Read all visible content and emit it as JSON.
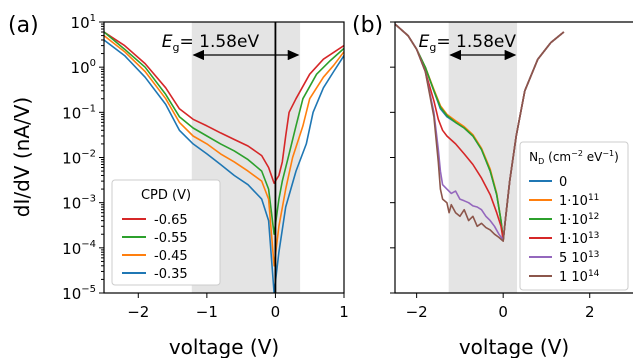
{
  "figure": {
    "ylabel": "dI/dV (nA/V)",
    "xlabel": "voltage (V)"
  },
  "colors": {
    "red": "#d62728",
    "green": "#2ca02c",
    "orange": "#ff7f0e",
    "blue": "#1f77b4",
    "purple": "#9467bd",
    "brown": "#8c564b",
    "band": "#e4e4e4"
  },
  "chart_data": [
    {
      "type": "line",
      "panel_label": "(a)",
      "xlabel": "voltage (V)",
      "ylabel": "dI/dV (nA/V)",
      "xlim": [
        -2.5,
        1.0
      ],
      "ylim": [
        1e-05,
        10
      ],
      "yscale": "log",
      "x_ticks": [
        -2,
        -1,
        0,
        1
      ],
      "x_tick_labels": [
        "−2",
        "−1",
        "0",
        "1"
      ],
      "y_ticks": [
        1e-05,
        0.0001,
        0.001,
        0.01,
        0.1,
        1,
        10
      ],
      "y_tick_labels": [
        {
          "base": "10",
          "exp": "−5"
        },
        {
          "base": "10",
          "exp": "−4"
        },
        {
          "base": "10",
          "exp": "−3"
        },
        {
          "base": "10",
          "exp": "−2"
        },
        {
          "base": "10",
          "exp": "−1"
        },
        {
          "base": "10",
          "exp": "0"
        },
        {
          "base": "10",
          "exp": "1"
        }
      ],
      "band_x": [
        -1.22,
        0.36
      ],
      "vline_x": 0,
      "annotation": {
        "sym": "E",
        "sub": "g",
        "text": "= 1.58eV",
        "from_x": -1.22,
        "to_x": 0.36
      },
      "legend": {
        "title": "CPD (V)",
        "position": "lower-left"
      },
      "series": [
        {
          "name": "-0.65",
          "color": "#d62728",
          "x": [
            -2.5,
            -2.2,
            -1.9,
            -1.6,
            -1.4,
            -1.2,
            -1.0,
            -0.8,
            -0.6,
            -0.4,
            -0.2,
            -0.1,
            -0.02,
            0.05,
            0.1,
            0.15,
            0.2,
            0.3,
            0.5,
            0.7,
            1.0
          ],
          "y": [
            6,
            3,
            1.2,
            0.35,
            0.12,
            0.07,
            0.05,
            0.035,
            0.025,
            0.018,
            0.011,
            0.006,
            0.0027,
            0.004,
            0.008,
            0.03,
            0.1,
            0.2,
            0.7,
            1.5,
            3
          ]
        },
        {
          "name": "-0.55",
          "color": "#2ca02c",
          "x": [
            -2.5,
            -2.2,
            -1.9,
            -1.6,
            -1.4,
            -1.2,
            -1.0,
            -0.8,
            -0.6,
            -0.4,
            -0.2,
            -0.1,
            -0.02,
            0.05,
            0.1,
            0.2,
            0.3,
            0.4,
            0.6,
            0.8,
            1.0
          ],
          "y": [
            6,
            2.5,
            1.0,
            0.25,
            0.08,
            0.045,
            0.03,
            0.02,
            0.014,
            0.009,
            0.005,
            0.002,
            0.0002,
            0.0012,
            0.003,
            0.012,
            0.05,
            0.2,
            0.7,
            1.4,
            2.6
          ]
        },
        {
          "name": "-0.45",
          "color": "#ff7f0e",
          "x": [
            -2.5,
            -2.2,
            -1.9,
            -1.6,
            -1.4,
            -1.2,
            -1.0,
            -0.8,
            -0.6,
            -0.4,
            -0.2,
            -0.1,
            -0.02,
            0.05,
            0.15,
            0.25,
            0.4,
            0.5,
            0.7,
            0.85,
            1.0
          ],
          "y": [
            5,
            2.2,
            0.8,
            0.2,
            0.06,
            0.03,
            0.02,
            0.012,
            0.008,
            0.005,
            0.003,
            0.0012,
            4e-05,
            0.0003,
            0.002,
            0.01,
            0.05,
            0.2,
            0.6,
            1.1,
            2.2
          ]
        },
        {
          "name": "-0.35",
          "color": "#1f77b4",
          "x": [
            -2.5,
            -2.2,
            -1.9,
            -1.6,
            -1.4,
            -1.2,
            -1.0,
            -0.8,
            -0.6,
            -0.4,
            -0.2,
            -0.1,
            -0.02,
            0.05,
            0.15,
            0.3,
            0.45,
            0.55,
            0.7,
            0.85,
            1.0
          ],
          "y": [
            4,
            1.8,
            0.6,
            0.15,
            0.04,
            0.02,
            0.012,
            0.007,
            0.004,
            0.0025,
            0.0012,
            0.0004,
            1e-05,
            8e-05,
            0.0008,
            0.005,
            0.02,
            0.1,
            0.35,
            0.8,
            1.8
          ]
        }
      ]
    },
    {
      "type": "line",
      "panel_label": "(b)",
      "xlabel": "voltage (V)",
      "xlim": [
        -2.5,
        3.0
      ],
      "ylim": [
        1e-05,
        10
      ],
      "yscale": "log",
      "x_ticks": [
        -2,
        0,
        2
      ],
      "x_tick_labels": [
        "−2",
        "0",
        "2"
      ],
      "band_x": [
        -1.26,
        0.32
      ],
      "annotation": {
        "sym": "E",
        "sub": "g",
        "text": "= 1.58eV",
        "from_x": -1.26,
        "to_x": 0.32
      },
      "legend": {
        "title_main": "N",
        "title_sub": "D",
        "title_unit": " (cm",
        "title_exp1": "−2",
        "title_mid": " eV",
        "title_exp2": "−1",
        "title_end": ")",
        "position": "lower-right"
      },
      "series": [
        {
          "color": "#1f77b4",
          "label": {
            "main": "0",
            "sup": ""
          },
          "x": [
            -2.5,
            -2.2,
            -2.0,
            -1.8,
            -1.6,
            -1.45,
            -1.3,
            -1.1,
            -0.9,
            -0.7,
            -0.5,
            -0.3,
            -0.15,
            -0.05,
            0.0,
            0.05,
            0.15,
            0.3,
            0.5,
            0.8,
            1.1,
            1.4
          ],
          "y": [
            9,
            5,
            2.5,
            1.0,
            0.3,
            0.12,
            0.08,
            0.06,
            0.045,
            0.03,
            0.015,
            0.005,
            0.0015,
            0.0004,
            0.00015,
            0.0004,
            0.003,
            0.03,
            0.3,
            1.5,
            3.5,
            6
          ]
        },
        {
          "color": "#ff7f0e",
          "label": {
            "main": "1·10",
            "sup": "11"
          },
          "x": [
            -2.5,
            -2.2,
            -2.0,
            -1.8,
            -1.6,
            -1.45,
            -1.3,
            -1.1,
            -0.9,
            -0.7,
            -0.5,
            -0.3,
            -0.15,
            -0.05,
            0.0,
            0.05,
            0.15,
            0.3,
            0.5,
            0.8,
            1.1,
            1.4
          ],
          "y": [
            9,
            5,
            2.5,
            1.0,
            0.32,
            0.14,
            0.09,
            0.065,
            0.048,
            0.032,
            0.016,
            0.0055,
            0.0016,
            0.0004,
            0.00015,
            0.0004,
            0.003,
            0.03,
            0.3,
            1.5,
            3.5,
            6
          ]
        },
        {
          "color": "#2ca02c",
          "label": {
            "main": "1·10",
            "sup": "12"
          },
          "x": [
            -2.5,
            -2.2,
            -2.0,
            -1.8,
            -1.6,
            -1.45,
            -1.3,
            -1.1,
            -0.9,
            -0.7,
            -0.5,
            -0.3,
            -0.15,
            -0.05,
            0.0,
            0.05,
            0.15,
            0.3,
            0.5,
            0.8,
            1.1,
            1.4
          ],
          "y": [
            9,
            5,
            2.5,
            1.0,
            0.3,
            0.13,
            0.085,
            0.06,
            0.045,
            0.03,
            0.015,
            0.005,
            0.0015,
            0.0004,
            0.00015,
            0.0004,
            0.003,
            0.03,
            0.3,
            1.5,
            3.5,
            6
          ]
        },
        {
          "color": "#d62728",
          "label": {
            "main": "1·10",
            "sup": "13"
          },
          "x": [
            -2.5,
            -2.2,
            -2.0,
            -1.8,
            -1.6,
            -1.5,
            -1.4,
            -1.3,
            -1.1,
            -0.9,
            -0.7,
            -0.5,
            -0.3,
            -0.15,
            -0.05,
            0.0,
            0.05,
            0.15,
            0.3,
            0.5,
            0.8,
            1.1,
            1.4
          ],
          "y": [
            9,
            5,
            2.5,
            0.8,
            0.18,
            0.07,
            0.04,
            0.03,
            0.02,
            0.012,
            0.007,
            0.0035,
            0.0015,
            0.0006,
            0.0003,
            0.00015,
            0.0004,
            0.003,
            0.03,
            0.3,
            1.5,
            3.5,
            6
          ]
        },
        {
          "color": "#9467bd",
          "label": {
            "main": "5 10",
            "sup": "13"
          },
          "x": [
            -2.5,
            -2.2,
            -2.0,
            -1.8,
            -1.6,
            -1.5,
            -1.45,
            -1.4,
            -1.3,
            -1.2,
            -1.1,
            -1.0,
            -0.9,
            -0.8,
            -0.7,
            -0.6,
            -0.5,
            -0.4,
            -0.3,
            -0.2,
            -0.1,
            0.0,
            0.05,
            0.15,
            0.3,
            0.5,
            0.8,
            1.1,
            1.4
          ],
          "y": [
            9,
            5,
            2.5,
            0.8,
            0.1,
            0.015,
            0.005,
            0.0025,
            0.002,
            0.0016,
            0.0018,
            0.0012,
            0.0011,
            0.001,
            0.00085,
            0.0008,
            0.0007,
            0.0005,
            0.0004,
            0.0003,
            0.0002,
            0.00015,
            0.0004,
            0.003,
            0.03,
            0.3,
            1.5,
            3.5,
            6
          ]
        },
        {
          "color": "#8c564b",
          "label": {
            "main": "1 10",
            "sup": "14"
          },
          "x": [
            -2.5,
            -2.2,
            -2.0,
            -1.8,
            -1.6,
            -1.5,
            -1.45,
            -1.4,
            -1.3,
            -1.25,
            -1.2,
            -1.1,
            -1.0,
            -0.9,
            -0.8,
            -0.7,
            -0.6,
            -0.5,
            -0.4,
            -0.3,
            -0.2,
            -0.1,
            0.0,
            0.05,
            0.15,
            0.3,
            0.5,
            0.8,
            1.1,
            1.4
          ],
          "y": [
            9,
            5,
            2.5,
            0.8,
            0.08,
            0.008,
            0.002,
            0.0012,
            0.001,
            0.0006,
            0.0009,
            0.0006,
            0.0005,
            0.0007,
            0.0004,
            0.0005,
            0.0003,
            0.00035,
            0.00028,
            0.00025,
            0.0002,
            0.00017,
            0.00014,
            0.0004,
            0.003,
            0.03,
            0.3,
            1.5,
            3.5,
            6
          ]
        }
      ]
    }
  ]
}
